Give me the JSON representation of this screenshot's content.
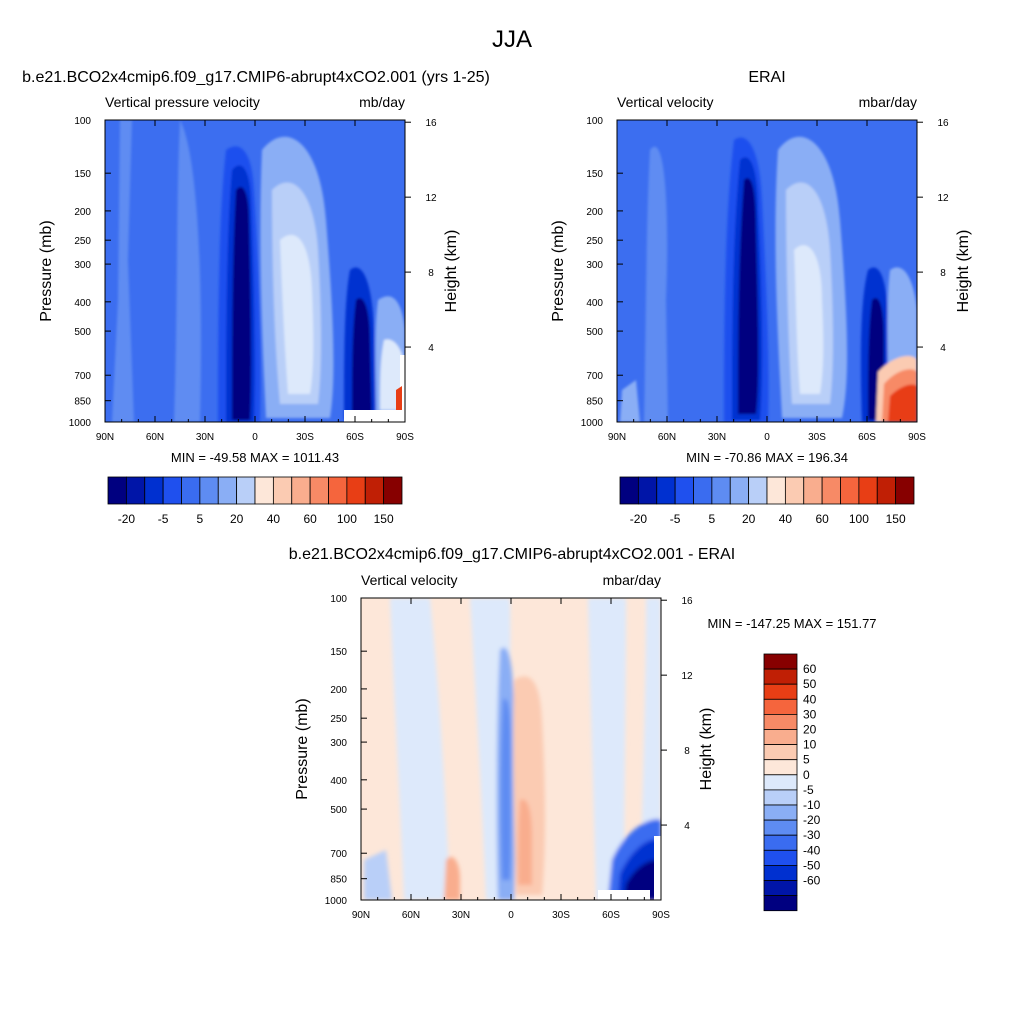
{
  "page_title": "JJA",
  "colors": {
    "blue_scale": [
      "#000080",
      "#0015a8",
      "#0030d0",
      "#1f50ee",
      "#3a6cf0",
      "#5e8cf2",
      "#8aaef5",
      "#b9cff8",
      "#dde9fb"
    ],
    "red_scale": [
      "#fde7d9",
      "#fbcbb2",
      "#f9ad8e",
      "#f78a66",
      "#f5653d",
      "#e83e15",
      "#c01f05",
      "#870000"
    ],
    "base_fill": "#3c6ef0",
    "diff_base_fill": "#d8e7fb"
  },
  "chart_data": [
    {
      "id": "model",
      "type": "contour",
      "title": "b.e21.BCO2x4cmip6.f09_g17.CMIP6-abrupt4xCO2.001 (yrs 1-25)",
      "left_string": "Vertical pressure velocity",
      "right_string": "mb/day",
      "ylabel": "Pressure (mb)",
      "y2label": "Height (km)",
      "x_ticks": [
        "90N",
        "60N",
        "30N",
        "0",
        "30S",
        "60S",
        "90S"
      ],
      "y_ticks": [
        "100",
        "150",
        "200",
        "250",
        "300",
        "400",
        "500",
        "700",
        "850",
        "1000"
      ],
      "y2_ticks": [
        "16",
        "12",
        "8",
        "4"
      ],
      "stats": "MIN = -49.58  MAX = 1011.43",
      "colorbar_labels": [
        "-20",
        "-5",
        "5",
        "20",
        "40",
        "60",
        "100",
        "150"
      ]
    },
    {
      "id": "obs",
      "type": "contour",
      "title": "ERAI",
      "left_string": "Vertical velocity",
      "right_string": "mbar/day",
      "ylabel": "Pressure (mb)",
      "y2label": "Height (km)",
      "x_ticks": [
        "90N",
        "60N",
        "30N",
        "0",
        "30S",
        "60S",
        "90S"
      ],
      "y_ticks": [
        "100",
        "150",
        "200",
        "250",
        "300",
        "400",
        "500",
        "700",
        "850",
        "1000"
      ],
      "y2_ticks": [
        "16",
        "12",
        "8",
        "4"
      ],
      "stats": "MIN = -70.86  MAX = 196.34",
      "colorbar_labels": [
        "-20",
        "-5",
        "5",
        "20",
        "40",
        "60",
        "100",
        "150"
      ]
    },
    {
      "id": "diff",
      "type": "contour",
      "title": "b.e21.BCO2x4cmip6.f09_g17.CMIP6-abrupt4xCO2.001 - ERAI",
      "left_string": "Vertical velocity",
      "right_string": "mbar/day",
      "ylabel": "Pressure (mb)",
      "y2label": "Height (km)",
      "x_ticks": [
        "90N",
        "60N",
        "30N",
        "0",
        "30S",
        "60S",
        "90S"
      ],
      "y_ticks": [
        "100",
        "150",
        "200",
        "250",
        "300",
        "400",
        "500",
        "700",
        "850",
        "1000"
      ],
      "y2_ticks": [
        "16",
        "12",
        "8",
        "4"
      ],
      "stats": "MIN = -147.25  MAX = 151.77",
      "colorbar_labels": [
        "60",
        "50",
        "40",
        "30",
        "20",
        "10",
        "5",
        "0",
        "-5",
        "-10",
        "-20",
        "-30",
        "-40",
        "-50",
        "-60"
      ]
    }
  ]
}
